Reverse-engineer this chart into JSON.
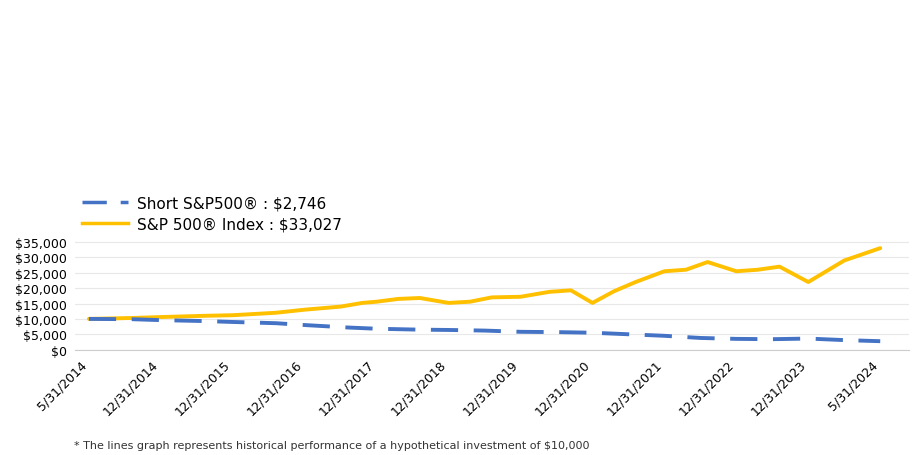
{
  "legend_labels": [
    "Short S&P500® : $2,746",
    "S&P 500® Index : $33,027"
  ],
  "x_labels": [
    "5/31/2014",
    "12/31/2014",
    "12/31/2015",
    "12/31/2016",
    "12/31/2017",
    "12/31/2018",
    "12/31/2019",
    "12/31/2020",
    "12/31/2021",
    "12/31/2022",
    "12/31/2023",
    "5/31/2024"
  ],
  "short_x": [
    0,
    0.6,
    1,
    1.6,
    2,
    2.6,
    3,
    3.6,
    4,
    4.6,
    5,
    5.5,
    6,
    6.5,
    7,
    7.5,
    8,
    8.5,
    9,
    9.5,
    10,
    10.5,
    11
  ],
  "short_y": [
    10000,
    9900,
    9600,
    9300,
    9000,
    8600,
    8000,
    7200,
    6800,
    6500,
    6400,
    6200,
    5800,
    5700,
    5500,
    5000,
    4500,
    3800,
    3500,
    3400,
    3600,
    3100,
    2746
  ],
  "sp500_x": [
    0,
    0.6,
    1,
    1.6,
    2,
    2.6,
    3,
    3.5,
    3.8,
    4,
    4.3,
    4.6,
    5,
    5.3,
    5.6,
    6,
    6.4,
    6.7,
    7,
    7.3,
    7.6,
    8,
    8.3,
    8.6,
    9,
    9.3,
    9.6,
    10,
    10.5,
    11
  ],
  "sp500_y": [
    10000,
    10300,
    10600,
    11000,
    11200,
    12000,
    13000,
    14000,
    15200,
    15600,
    16500,
    16800,
    15200,
    15600,
    17000,
    17200,
    18800,
    19300,
    15200,
    19000,
    22000,
    25500,
    26000,
    28500,
    25500,
    26000,
    27000,
    22000,
    29000,
    33027
  ],
  "ylim": [
    0,
    37000
  ],
  "yticks": [
    0,
    5000,
    10000,
    15000,
    20000,
    25000,
    30000,
    35000
  ],
  "xlim": [
    -0.2,
    11.4
  ],
  "short_color": "#4472C4",
  "sp500_color": "#FFC000",
  "footnote": "* The lines graph represents historical performance of a hypothetical investment of $10,000",
  "background_color": "#FFFFFF",
  "grid_color": "#E8E8E8",
  "bottom_spine_color": "#CCCCCC",
  "legend_fontsize": 11,
  "tick_fontsize": 9,
  "footnote_fontsize": 8,
  "linewidth": 2.8
}
